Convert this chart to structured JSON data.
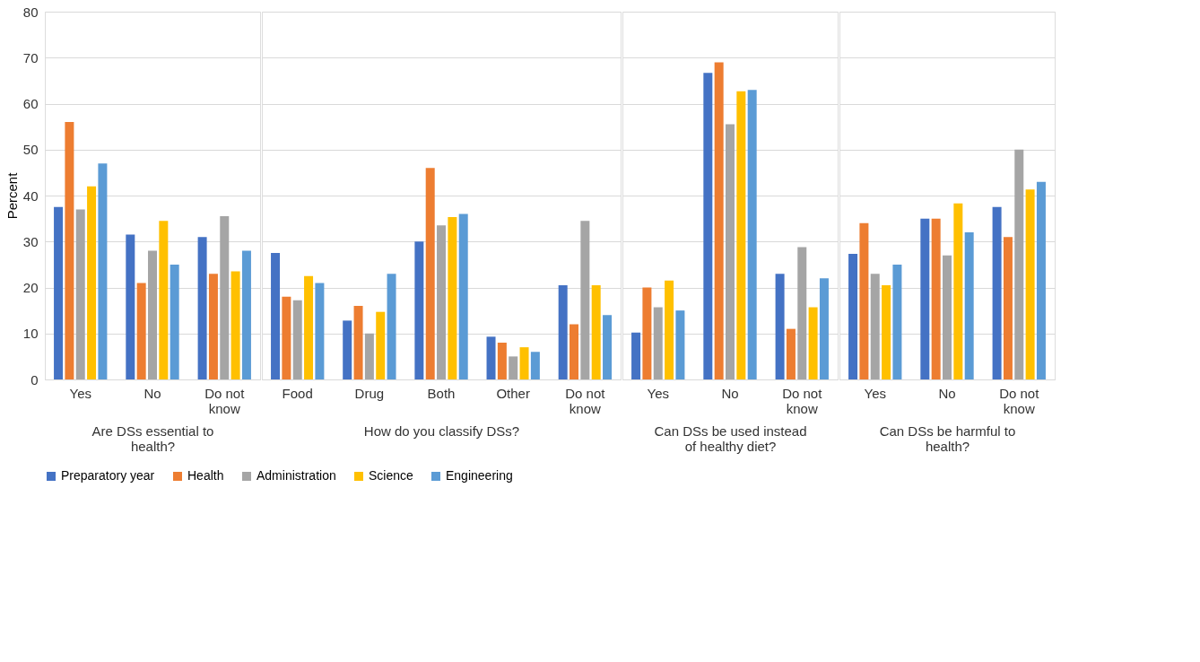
{
  "chart_data": [
    {
      "type": "bar",
      "xlabel": "Are DSs essential to health?",
      "ylabel": "Percent",
      "categories": [
        "Yes",
        "No",
        "Do not know"
      ],
      "ylim": [
        0,
        80
      ],
      "yticks": [
        0,
        10,
        20,
        30,
        40,
        50,
        60,
        70,
        80
      ],
      "grid": "y",
      "legend": "bottom",
      "series": [
        {
          "name": "Preparatory year",
          "color": "#4472c4",
          "values": [
            37.5,
            31.5,
            31
          ]
        },
        {
          "name": "Health",
          "color": "#ed7d31",
          "values": [
            56,
            21,
            23
          ]
        },
        {
          "name": "Administration",
          "color": "#a5a5a5",
          "values": [
            37,
            28,
            35.5
          ]
        },
        {
          "name": "Science",
          "color": "#ffc000",
          "values": [
            42,
            34.5,
            23.5
          ]
        },
        {
          "name": "Engineering",
          "color": "#5b9bd5",
          "values": [
            47,
            25,
            28
          ]
        }
      ]
    },
    {
      "type": "bar",
      "xlabel": "How do you classify DSs?",
      "categories": [
        "Food",
        "Drug",
        "Both",
        "Other",
        "Do not know"
      ],
      "ylim": [
        0,
        80
      ],
      "yticks": [
        0,
        10,
        20,
        30,
        40,
        50,
        60,
        70,
        80
      ],
      "grid": "y",
      "tick_labels": "x",
      "series": [
        {
          "name": "Preparatory year",
          "color": "#4472c4",
          "values": [
            27.5,
            12.8,
            30,
            9.3,
            20.5
          ]
        },
        {
          "name": "Health",
          "color": "#ed7d31",
          "values": [
            18,
            16,
            46,
            8,
            12
          ]
        },
        {
          "name": "Administration",
          "color": "#a5a5a5",
          "values": [
            17.2,
            10,
            33.5,
            5,
            34.5
          ]
        },
        {
          "name": "Science",
          "color": "#ffc000",
          "values": [
            22.5,
            14.7,
            35.3,
            7,
            20.5
          ]
        },
        {
          "name": "Engineering",
          "color": "#5b9bd5",
          "values": [
            21,
            23,
            36,
            6,
            14
          ]
        }
      ]
    },
    {
      "type": "bar",
      "xlabel": "Can DSs be used instead of healthy diet?",
      "categories": [
        "Yes",
        "No",
        "Do not know"
      ],
      "ylim": [
        0,
        80
      ],
      "yticks": [
        0,
        10,
        20,
        30,
        40,
        50,
        60,
        70,
        80
      ],
      "grid": "y",
      "tick_labels": "x",
      "series": [
        {
          "name": "Preparatory year",
          "color": "#4472c4",
          "values": [
            10.2,
            66.7,
            23
          ]
        },
        {
          "name": "Health",
          "color": "#ed7d31",
          "values": [
            20,
            69,
            11
          ]
        },
        {
          "name": "Administration",
          "color": "#a5a5a5",
          "values": [
            15.7,
            55.5,
            28.8
          ]
        },
        {
          "name": "Science",
          "color": "#ffc000",
          "values": [
            21.5,
            62.7,
            15.7
          ]
        },
        {
          "name": "Engineering",
          "color": "#5b9bd5",
          "values": [
            15,
            63,
            22
          ]
        }
      ]
    },
    {
      "type": "bar",
      "xlabel": "Can DSs be harmful to health?",
      "categories": [
        "Yes",
        "No",
        "Do not know"
      ],
      "ylim": [
        0,
        80
      ],
      "yticks": [
        0,
        10,
        20,
        30,
        40,
        50,
        60,
        70,
        80
      ],
      "grid": "y",
      "tick_labels": "x",
      "series": [
        {
          "name": "Preparatory year",
          "color": "#4472c4",
          "values": [
            27.3,
            35,
            37.5
          ]
        },
        {
          "name": "Health",
          "color": "#ed7d31",
          "values": [
            34,
            35,
            31
          ]
        },
        {
          "name": "Administration",
          "color": "#a5a5a5",
          "values": [
            23,
            27,
            50
          ]
        },
        {
          "name": "Science",
          "color": "#ffc000",
          "values": [
            20.5,
            38.3,
            41.3
          ]
        },
        {
          "name": "Engineering",
          "color": "#5b9bd5",
          "values": [
            25,
            32,
            43
          ]
        }
      ]
    }
  ]
}
